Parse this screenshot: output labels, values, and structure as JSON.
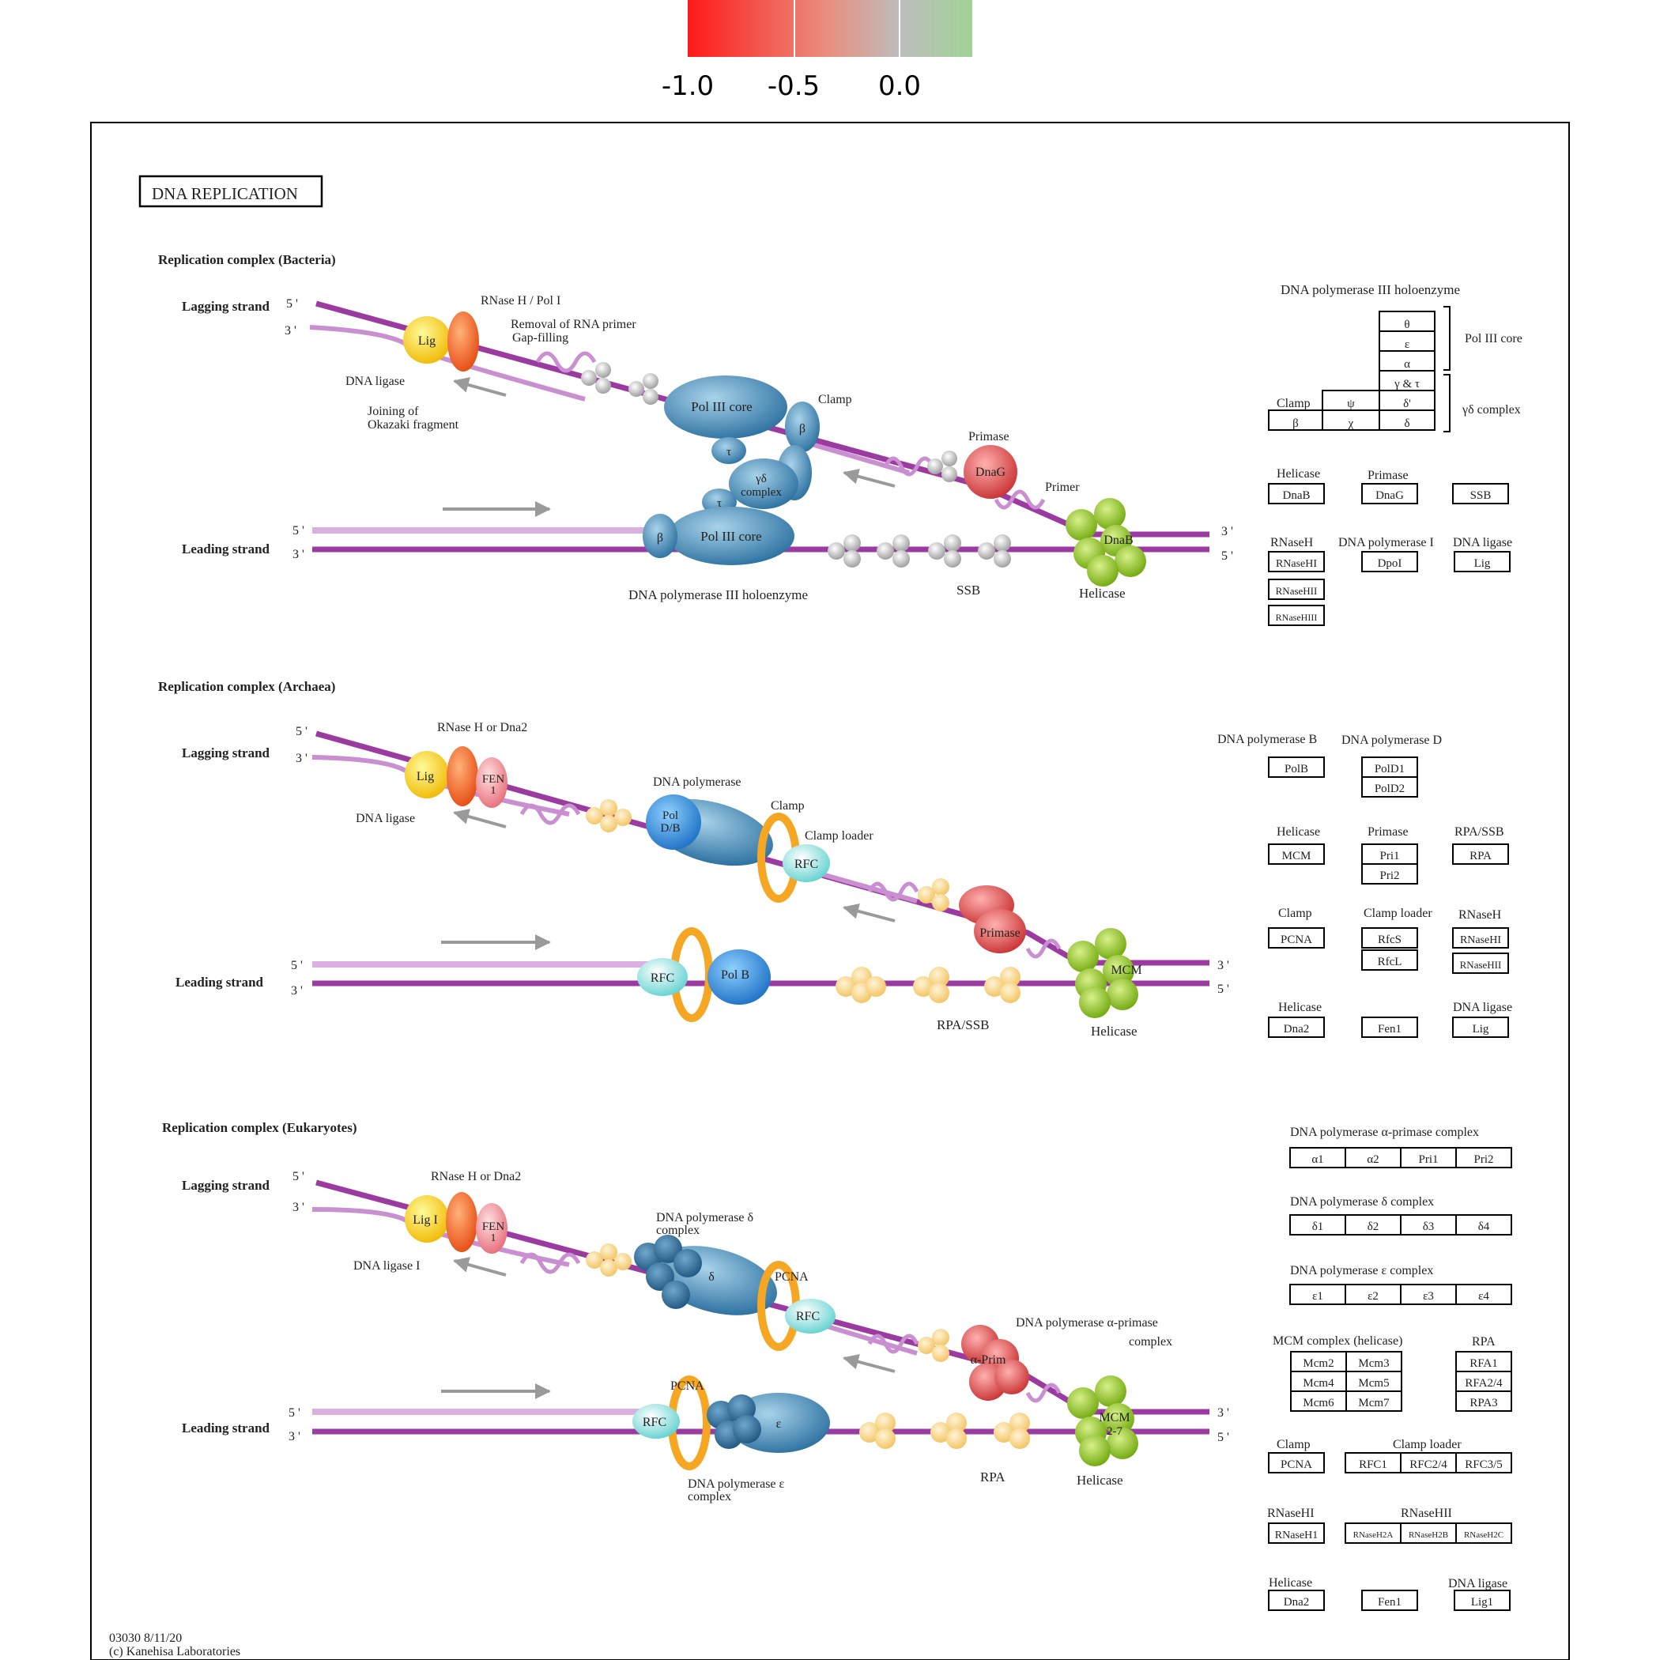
{
  "legend": {
    "ticks": [
      "-1.0",
      "-0.5",
      "0.0"
    ],
    "colors": [
      "#ff1a1a",
      "#b4b4b4",
      "#a0d296"
    ]
  },
  "title": "DNA  REPLICATION",
  "footer": {
    "id": "03030 8/11/20",
    "copyright": "(c) Kanehisa Laboratories"
  },
  "bacteria": {
    "heading": "Replication complex (Bacteria)",
    "lagging": "Lagging strand",
    "leading": "Leading strand",
    "five": "5 '",
    "three": "3 '",
    "rnase_label": "RNase H / Pol I",
    "removal_label": "Removal of RNA primer",
    "gap_label": "Gap-filling",
    "lig": "Lig",
    "dna_ligase": "DNA ligase",
    "joining": "Joining of",
    "okazaki": "Okazaki fragment",
    "pol3core": "Pol III core",
    "tau": "τ",
    "yd": "γδ",
    "complex": "complex",
    "beta": "β",
    "clamp": "Clamp",
    "primase": "Primase",
    "dnag": "DnaG",
    "primer": "Primer",
    "dnab": "DnaB",
    "helicase": "Helicase",
    "ssb": "SSB",
    "holoenzyme": "DNA polymerase III holoenzyme"
  },
  "archaea": {
    "heading": "Replication complex (Archaea)",
    "lagging": "Lagging strand",
    "leading": "Leading strand",
    "five": "5 '",
    "three": "3 '",
    "rnase_label": "RNase H or Dna2",
    "lig": "Lig",
    "fen": "FEN",
    "one": "1",
    "dna_ligase": "DNA ligase",
    "dna_polymerase": "DNA polymerase",
    "pol": "Pol",
    "db": "D/B",
    "clamp": "Clamp",
    "clamp_loader": "Clamp loader",
    "rfc": "RFC",
    "primase": "Primase",
    "mcm": "MCM",
    "helicase": "Helicase",
    "polb": "Pol B",
    "rpassb": "RPA/SSB"
  },
  "eukaryotes": {
    "heading": "Replication complex (Eukaryotes)",
    "lagging": "Lagging strand",
    "leading": "Leading strand",
    "five": "5 '",
    "three": "3 '",
    "rnase_label": "RNase H or Dna2",
    "lig1": "Lig I",
    "fen": "FEN",
    "one": "1",
    "dna_ligase1": "DNA ligase I",
    "pold_label": "DNA polymerase δ",
    "complex": "complex",
    "delta": "δ",
    "pcna": "PCNA",
    "rfc": "RFC",
    "alpha_label": "DNA polymerase α-primase",
    "alpha_complex": "complex",
    "aprim": "α-Prim",
    "mcm": "MCM",
    "mcm27": "2-7",
    "helicase": "Helicase",
    "rpa": "RPA",
    "epsilon": "ε",
    "pole_label": "DNA polymerase ε",
    "pole_complex": "complex"
  },
  "panel_b": {
    "holo_title": "DNA polymerase III holoenzyme",
    "polcore": "Pol III core",
    "ydcomplex": "γδ complex",
    "clamp": "Clamp",
    "theta": "θ",
    "eps": "ε",
    "alpha": "α",
    "gt": "γ & τ",
    "psi": "ψ",
    "dprime": "δ'",
    "beta": "β",
    "chi": "χ",
    "delta": "δ",
    "helicase": "Helicase",
    "dnab": "DnaB",
    "primase": "Primase",
    "dnag": "DnaG",
    "ssb": "SSB",
    "rnaseh": "RNaseH",
    "rnasehi": "RNaseHI",
    "rnasehii": "RNaseHII",
    "rnasehiii": "RNaseHIII",
    "pol1": "DNA polymerase I",
    "dpol": "DpoI",
    "ligase": "DNA ligase",
    "lig": "Lig"
  },
  "panel_a": {
    "polb_title": "DNA polymerase B",
    "polb": "PolB",
    "pold_title": "DNA polymerase D",
    "pold1": "PolD1",
    "pold2": "PolD2",
    "helicase": "Helicase",
    "mcm": "MCM",
    "primase": "Primase",
    "pri1": "Pri1",
    "pri2": "Pri2",
    "rpassb": "RPA/SSB",
    "rpa": "RPA",
    "clamp": "Clamp",
    "pcna": "PCNA",
    "clamp_loader": "Clamp loader",
    "rfcs": "RfcS",
    "rfcl": "RfcL",
    "rnaseh": "RNaseH",
    "rnasehi": "RNaseHI",
    "rnasehii": "RNaseHII",
    "helicase2": "Helicase",
    "dna2": "Dna2",
    "fen1": "Fen1",
    "ligase": "DNA ligase",
    "lig": "Lig"
  },
  "panel_e": {
    "alpha_title": "DNA polymerase α-primase complex",
    "a1": "α1",
    "a2": "α2",
    "pri1": "Pri1",
    "pri2": "Pri2",
    "delta_title": "DNA polymerase δ complex",
    "d1": "δ1",
    "d2": "δ2",
    "d3": "δ3",
    "d4": "δ4",
    "eps_title": "DNA polymerase ε complex",
    "e1": "ε1",
    "e2": "ε2",
    "e3": "ε3",
    "e4": "ε4",
    "mcm_title": "MCM complex (helicase)",
    "mcm2": "Mcm2",
    "mcm3": "Mcm3",
    "mcm4": "Mcm4",
    "mcm5": "Mcm5",
    "mcm6": "Mcm6",
    "mcm7": "Mcm7",
    "rpa_title": "RPA",
    "rfa1": "RFA1",
    "rfa24": "RFA2/4",
    "rpa3": "RPA3",
    "clamp": "Clamp",
    "pcna": "PCNA",
    "clamp_loader": "Clamp loader",
    "rfc1": "RFC1",
    "rfc24": "RFC2/4",
    "rfc35": "RFC3/5",
    "rnasehi": "RNaseHI",
    "rnaseh1": "RNaseH1",
    "rnasehii": "RNaseHII",
    "r2a": "RNaseH2A",
    "r2b": "RNaseH2B",
    "r2c": "RNaseH2C",
    "helicase": "Helicase",
    "dna2": "Dna2",
    "fen1": "Fen1",
    "ligase": "DNA ligase",
    "lig1": "Lig1"
  },
  "colors": {
    "ssb": "#f14c33",
    "mcm3": "#a6d59b",
    "mcm4": "#ec5a3d",
    "mcm5": "#d8a293",
    "mcm6": "#ee5438",
    "rfa1": "#ec7a63",
    "rpa3": "#f2502f",
    "pcna": "#ec6c52",
    "rfc35": "#d29d8e",
    "r2b": "#acc7a4",
    "dna2": "#ed7a63",
    "fen1": "#ff0a0a",
    "lig1": "#d8a69a"
  }
}
